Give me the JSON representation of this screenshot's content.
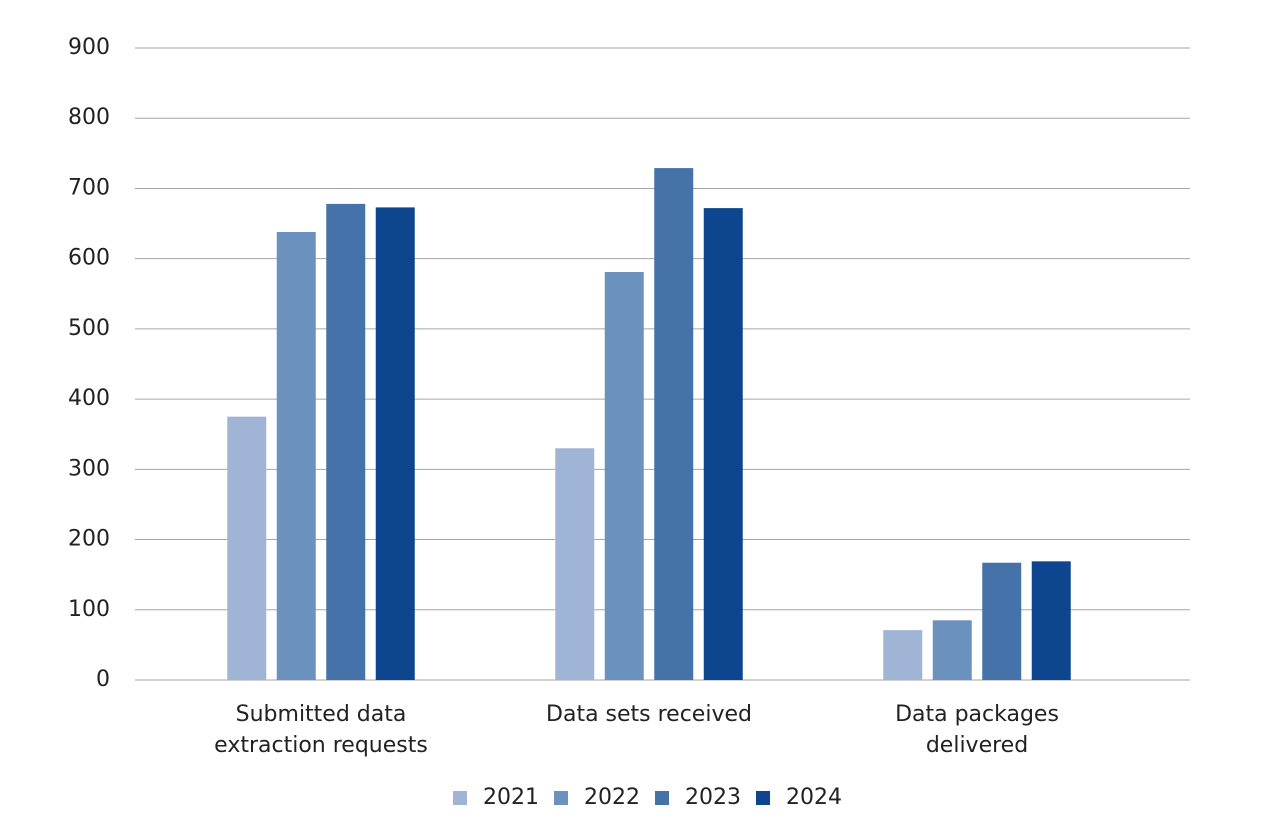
{
  "chart_data": {
    "type": "bar",
    "categories": [
      "Submitted data extraction requests",
      "Data sets received",
      "Data packages delivered"
    ],
    "series": [
      {
        "name": "2021",
        "color": "#a0b5d5",
        "values": [
          375,
          330,
          71
        ]
      },
      {
        "name": "2022",
        "color": "#6b91bf",
        "values": [
          638,
          581,
          85
        ]
      },
      {
        "name": "2023",
        "color": "#4672aa",
        "values": [
          678,
          729,
          167
        ]
      },
      {
        "name": "2024",
        "color": "#0d468e",
        "values": [
          673,
          672,
          169
        ]
      }
    ],
    "ylim": [
      0,
      900
    ],
    "yticks": [
      0,
      100,
      200,
      300,
      400,
      500,
      600,
      700,
      800,
      900
    ],
    "grid": true,
    "legend": "bottom"
  }
}
